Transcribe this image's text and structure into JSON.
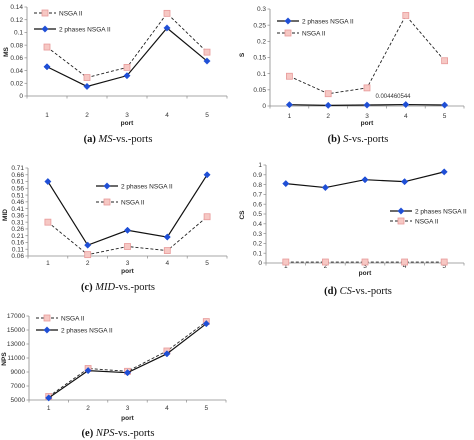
{
  "chart_data": [
    {
      "type": "line",
      "caption": {
        "letter": "(a)",
        "metric": "MS",
        "suffix": "-vs.-ports"
      },
      "title": "",
      "xlabel": "port",
      "ylabel": "MS",
      "categories": [
        "1",
        "2",
        "3",
        "4",
        "5"
      ],
      "ylim": [
        0,
        0.14
      ],
      "yticks": [
        "0",
        "0.02",
        "0.04",
        "0.06",
        "0.08",
        "0.1",
        "0.12",
        "0.14"
      ],
      "grid": false,
      "legend": "top-left",
      "series": [
        {
          "name": "NSGA II",
          "style": "dashed",
          "marker": "square",
          "color": "#e89a9a",
          "values": [
            0.077,
            0.029,
            0.045,
            0.13,
            0.069
          ]
        },
        {
          "name": "2 phases NSGA II",
          "style": "solid",
          "marker": "diamond",
          "color": "#1f4fd6",
          "values": [
            0.046,
            0.015,
            0.032,
            0.107,
            0.055
          ]
        }
      ]
    },
    {
      "type": "line",
      "caption": {
        "letter": "(b)",
        "metric": "S",
        "suffix": "-vs.-ports"
      },
      "title": "",
      "xlabel": "port",
      "ylabel": "S",
      "categories": [
        "1",
        "2",
        "3",
        "4",
        "5"
      ],
      "ylim": [
        0,
        0.3
      ],
      "yticks": [
        "0",
        "0.05",
        "0.1",
        "0.15",
        "0.2",
        "0.25",
        "0.3"
      ],
      "grid": false,
      "legend": "top-left",
      "annotation": "0.004460544",
      "series": [
        {
          "name": "2 phases NSGA II",
          "style": "solid",
          "marker": "diamond",
          "color": "#1f4fd6",
          "values": [
            0.004,
            0.002,
            0.003,
            0.0045,
            0.003
          ]
        },
        {
          "name": "NSGA II",
          "style": "dashed",
          "marker": "square",
          "color": "#e89a9a",
          "values": [
            0.092,
            0.038,
            0.056,
            0.28,
            0.14
          ]
        }
      ]
    },
    {
      "type": "line",
      "caption": {
        "letter": "(c)",
        "metric": "MID",
        "suffix": "-vs.-ports"
      },
      "title": "",
      "xlabel": "port",
      "ylabel": "MID",
      "categories": [
        "1",
        "2",
        "3",
        "4",
        "5"
      ],
      "ylim": [
        0.06,
        0.71
      ],
      "yticks": [
        "0.06",
        "0.11",
        "0.16",
        "0.21",
        "0.26",
        "0.31",
        "0.36",
        "0.41",
        "0.46",
        "0.51",
        "0.56",
        "0.61",
        "0.66",
        "0.71"
      ],
      "grid": false,
      "legend": "top-right",
      "series": [
        {
          "name": "2 phases NSGA II",
          "style": "solid",
          "marker": "diamond",
          "color": "#1f4fd6",
          "values": [
            0.61,
            0.14,
            0.25,
            0.2,
            0.66
          ]
        },
        {
          "name": "NSGA II",
          "style": "dashed",
          "marker": "square",
          "color": "#e89a9a",
          "values": [
            0.31,
            0.07,
            0.13,
            0.1,
            0.35
          ]
        }
      ]
    },
    {
      "type": "line",
      "caption": {
        "letter": "(d)",
        "metric": "CS",
        "suffix": "-vs.-ports"
      },
      "title": "",
      "xlabel": "port",
      "ylabel": "CS",
      "categories": [
        "1",
        "2",
        "3",
        "4",
        "5"
      ],
      "ylim": [
        0,
        1
      ],
      "yticks": [
        "0",
        "0.1",
        "0.2",
        "0.3",
        "0.4",
        "0.5",
        "0.6",
        "0.7",
        "0.8",
        "0.9",
        "1"
      ],
      "grid": false,
      "legend": "bottom-right",
      "series": [
        {
          "name": "2 phases NSGA II",
          "style": "solid",
          "marker": "diamond",
          "color": "#1f4fd6",
          "values": [
            0.81,
            0.77,
            0.85,
            0.83,
            0.93
          ]
        },
        {
          "name": "NSGA II",
          "style": "dashed",
          "marker": "square",
          "color": "#e89a9a",
          "values": [
            0.01,
            0.01,
            0.01,
            0.01,
            0.01
          ]
        }
      ]
    },
    {
      "type": "line",
      "caption": {
        "letter": "(e)",
        "metric": "NPS",
        "suffix": "-vs.-ports"
      },
      "title": "",
      "xlabel": "port",
      "ylabel": "NPS",
      "categories": [
        "1",
        "2",
        "3",
        "4",
        "5"
      ],
      "ylim": [
        5000,
        17000
      ],
      "yticks": [
        "5000",
        "7000",
        "9000",
        "11000",
        "13000",
        "15000",
        "17000"
      ],
      "grid": false,
      "legend": "top-left",
      "series": [
        {
          "name": "NSGA II",
          "style": "dashed",
          "marker": "square",
          "color": "#e89a9a",
          "values": [
            5500,
            9500,
            9100,
            12000,
            16200
          ]
        },
        {
          "name": "2 phases NSGA II",
          "style": "solid",
          "marker": "diamond",
          "color": "#1f4fd6",
          "values": [
            5300,
            9200,
            8900,
            11600,
            15900
          ]
        }
      ]
    }
  ]
}
